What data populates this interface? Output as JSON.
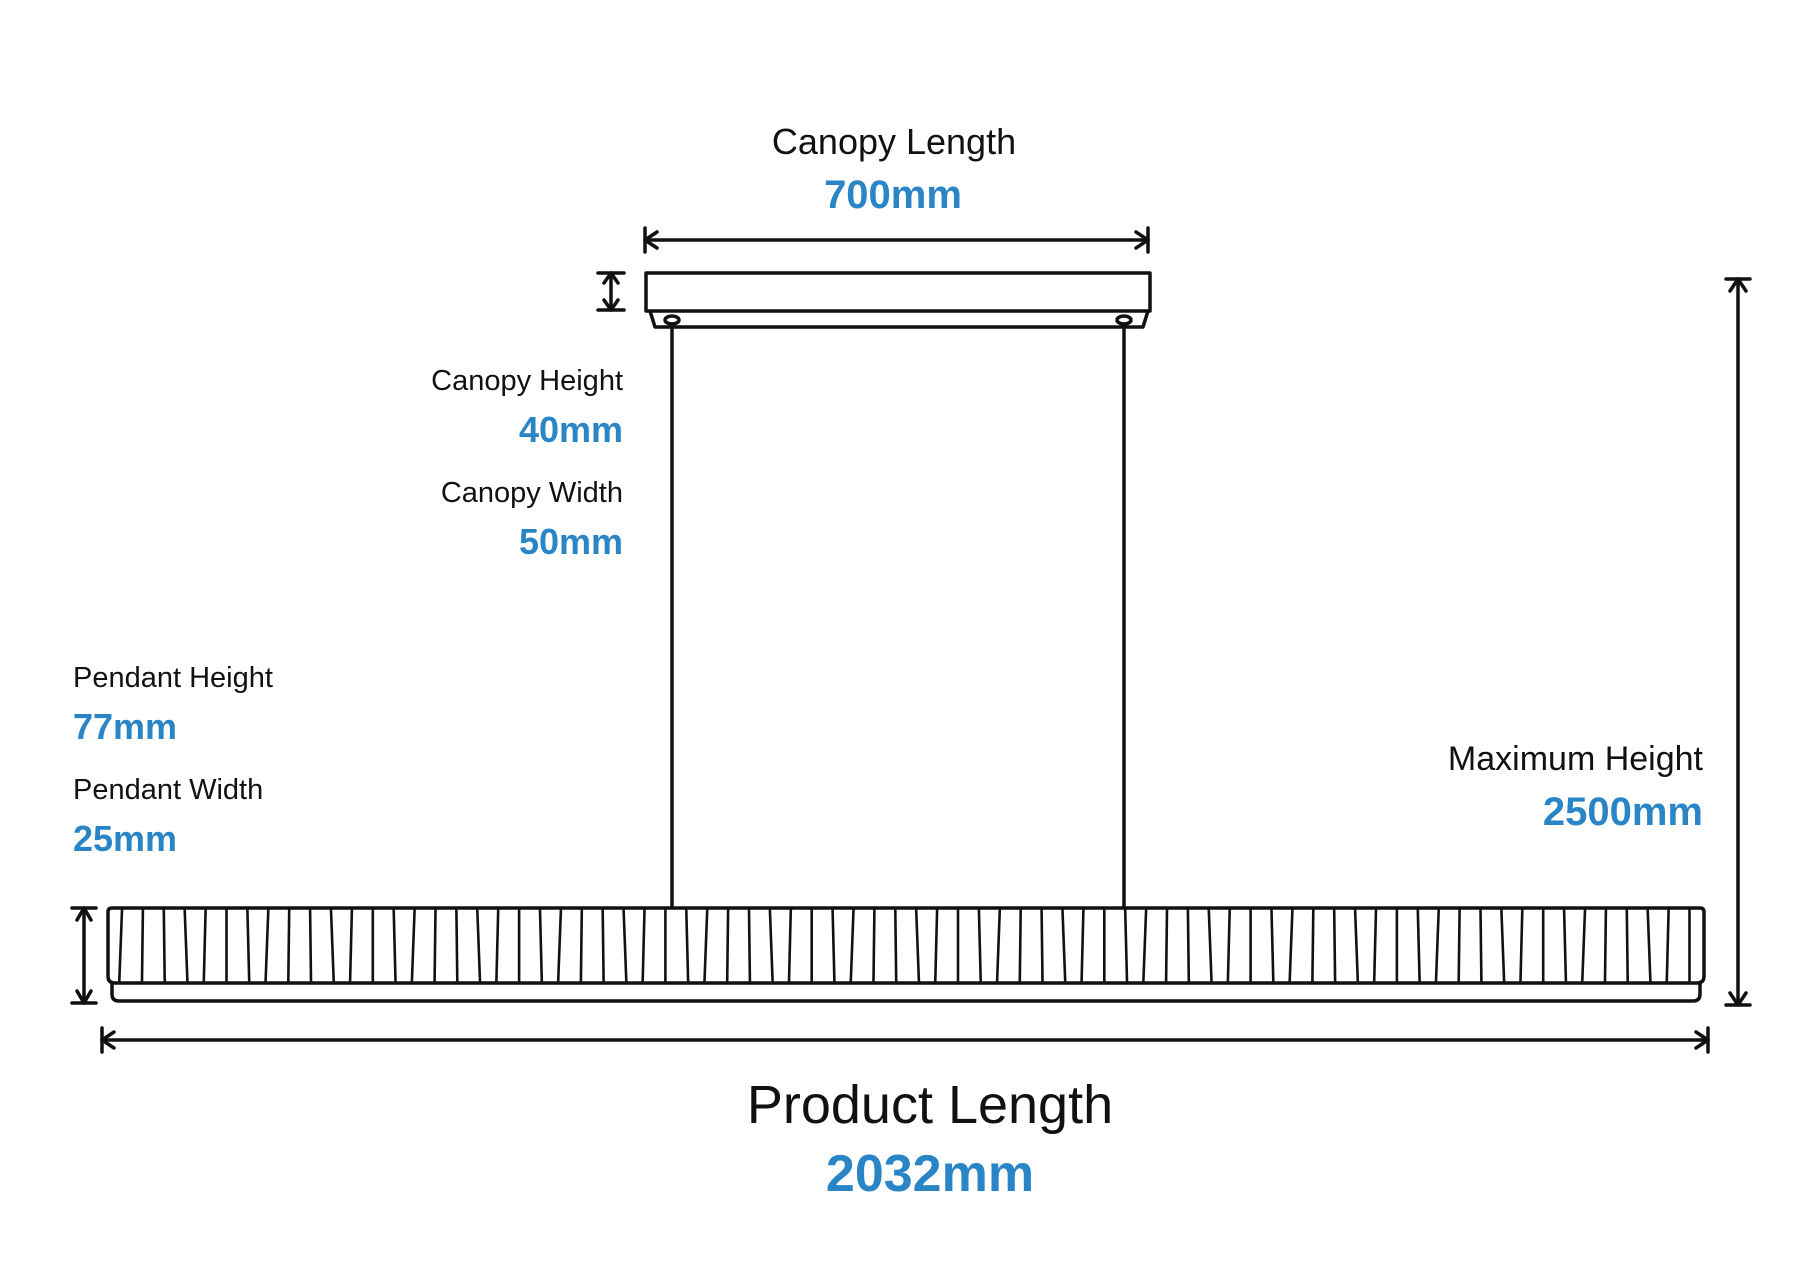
{
  "colors": {
    "line": "#111111",
    "value": "#2a85c6",
    "background": "#ffffff"
  },
  "canopy_length": {
    "label": "Canopy Length",
    "value": "700mm"
  },
  "canopy_height": {
    "label": "Canopy Height",
    "value": "40mm"
  },
  "canopy_width": {
    "label": "Canopy Width",
    "value": "50mm"
  },
  "pendant_height": {
    "label": "Pendant Height",
    "value": "77mm"
  },
  "pendant_width": {
    "label": "Pendant Width",
    "value": "25mm"
  },
  "maximum_height": {
    "label": "Maximum Height",
    "value": "2500mm"
  },
  "product_length": {
    "label": "Product Length",
    "value": "2032mm"
  }
}
